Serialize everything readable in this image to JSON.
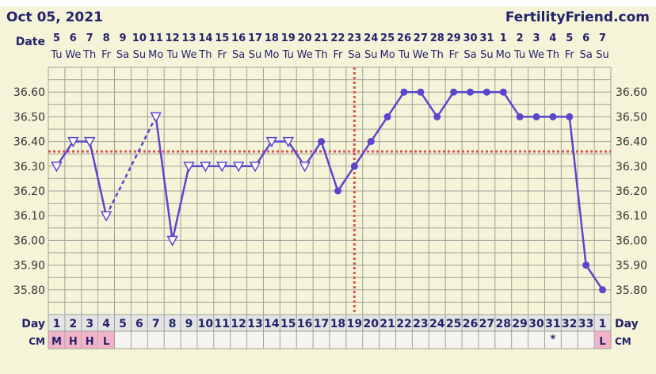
{
  "header": {
    "date": "Oct 05, 2021",
    "site": "FertilityFriend.com"
  },
  "labels": {
    "date": "Date",
    "day": "Day",
    "cm": "CM"
  },
  "colors": {
    "background": "#f6f4d8",
    "line": "#5a46cf",
    "coverline": "#d9534f",
    "ovulation": "#d9534f",
    "grid": "#a09f98",
    "cm_highlight": "#f2b3c8"
  },
  "chart_data": {
    "type": "line",
    "title": "",
    "ylim": [
      35.7,
      36.7
    ],
    "y_ticks": [
      "36.60",
      "36.50",
      "36.40",
      "36.30",
      "36.20",
      "36.10",
      "36.00",
      "35.90",
      "35.80"
    ],
    "dates": [
      "5",
      "6",
      "7",
      "8",
      "9",
      "10",
      "11",
      "12",
      "13",
      "14",
      "15",
      "16",
      "17",
      "18",
      "19",
      "20",
      "21",
      "22",
      "23",
      "24",
      "25",
      "26",
      "27",
      "28",
      "29",
      "30",
      "31",
      "1",
      "2",
      "3",
      "4",
      "5",
      "6",
      "7"
    ],
    "weekdays": [
      "Tu",
      "We",
      "Th",
      "Fr",
      "Sa",
      "Su",
      "Mo",
      "Tu",
      "We",
      "Th",
      "Fr",
      "Sa",
      "Su",
      "Mo",
      "Tu",
      "We",
      "Th",
      "Fr",
      "Sa",
      "Su",
      "Mo",
      "Tu",
      "We",
      "Th",
      "Fr",
      "Sa",
      "Su",
      "Mo",
      "Tu",
      "We",
      "Th",
      "Fr",
      "Sa",
      "Su"
    ],
    "cycle_days": [
      "1",
      "2",
      "3",
      "4",
      "5",
      "6",
      "7",
      "8",
      "9",
      "10",
      "11",
      "12",
      "13",
      "14",
      "15",
      "16",
      "17",
      "18",
      "19",
      "20",
      "21",
      "22",
      "23",
      "24",
      "25",
      "26",
      "27",
      "28",
      "29",
      "30",
      "31",
      "32",
      "33",
      "1"
    ],
    "temperatures": [
      36.3,
      36.4,
      36.4,
      36.1,
      null,
      null,
      36.5,
      36.0,
      36.3,
      36.3,
      36.3,
      36.3,
      36.3,
      36.4,
      36.4,
      36.3,
      36.4,
      36.2,
      36.3,
      36.4,
      36.5,
      36.6,
      36.6,
      36.5,
      36.6,
      36.6,
      36.6,
      36.6,
      36.5,
      36.5,
      36.5,
      36.5,
      35.9,
      35.8
    ],
    "markers": [
      "triangle",
      "triangle",
      "triangle",
      "triangle",
      null,
      null,
      "triangle",
      "triangle",
      "triangle",
      "triangle",
      "triangle",
      "triangle",
      "triangle",
      "triangle",
      "triangle",
      "triangle",
      "dot",
      "dot",
      "dot",
      "dot",
      "dot",
      "dot",
      "dot",
      "dot",
      "dot",
      "dot",
      "dot",
      "dot",
      "dot",
      "dot",
      "dot",
      "dot",
      "dot",
      "dot"
    ],
    "coverline": 36.36,
    "ovulation_day": 19,
    "cm": [
      "M",
      "H",
      "H",
      "L",
      "",
      "",
      "",
      "",
      "",
      "",
      "",
      "",
      "",
      "",
      "",
      "",
      "",
      "",
      "",
      "",
      "",
      "",
      "",
      "",
      "",
      "",
      "",
      "",
      "",
      "",
      "*",
      "",
      "",
      "L"
    ],
    "grid": true
  }
}
